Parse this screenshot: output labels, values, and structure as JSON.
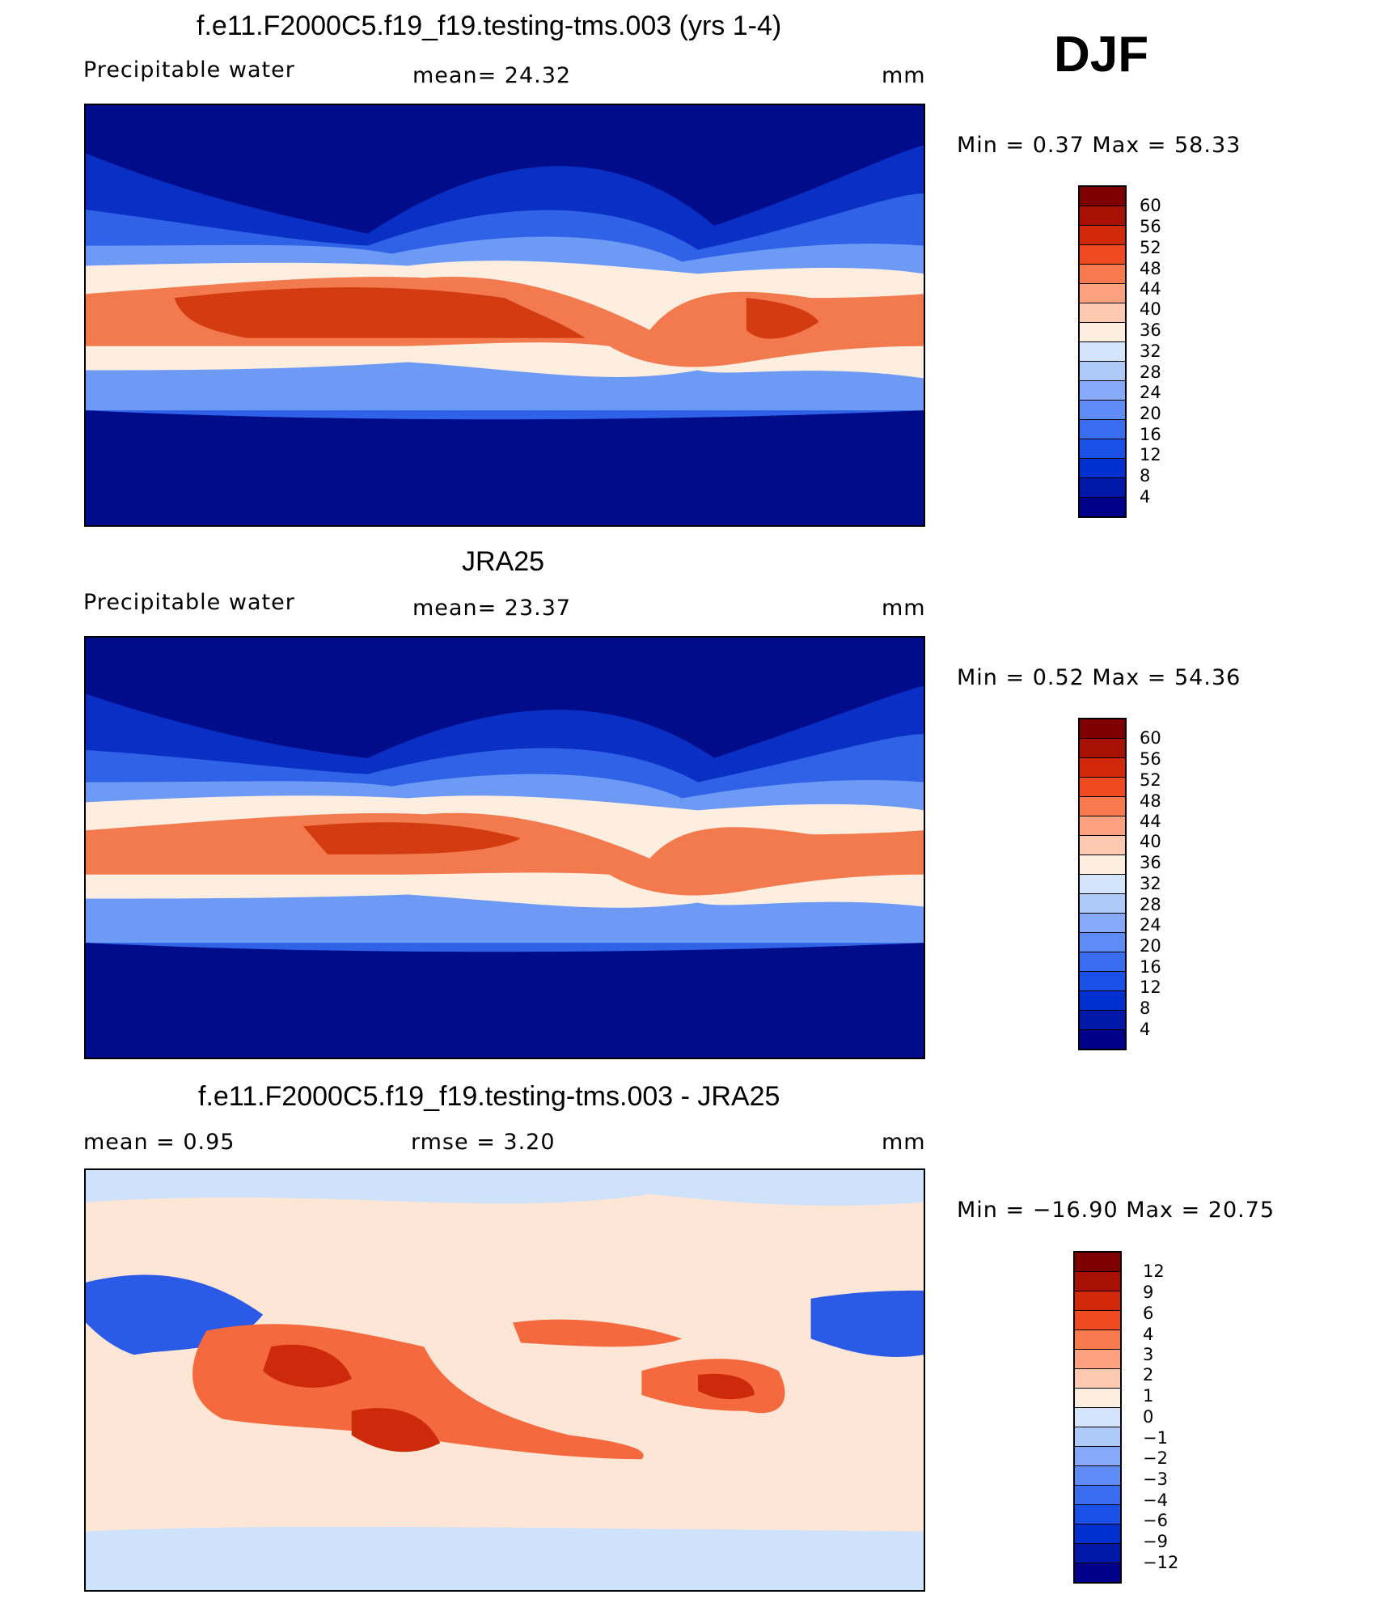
{
  "season": "DJF",
  "panels": [
    {
      "title": "f.e11.F2000C5.f19_f19.testing-tms.003 (yrs 1-4)",
      "left": "Precipitable  water",
      "center": "mean=   24.32",
      "units": "mm",
      "minmax": "Min  =     0.37  Max  =    58.33",
      "colorbar_labels": [
        "60",
        "56",
        "52",
        "48",
        "44",
        "40",
        "36",
        "32",
        "28",
        "24",
        "20",
        "16",
        "12",
        "8",
        "4"
      ]
    },
    {
      "title": "JRA25",
      "left": "Precipitable  water",
      "center": "mean=   23.37",
      "units": "mm",
      "minmax": "Min  =     0.52  Max  =    54.36",
      "colorbar_labels": [
        "60",
        "56",
        "52",
        "48",
        "44",
        "40",
        "36",
        "32",
        "28",
        "24",
        "20",
        "16",
        "12",
        "8",
        "4"
      ]
    },
    {
      "title": "f.e11.F2000C5.f19_f19.testing-tms.003 - JRA25",
      "left": "mean  =     0.95",
      "center": "rmse  =     3.20",
      "units": "mm",
      "minmax": "Min  =  −16.90  Max  =    20.75",
      "colorbar_labels": [
        "12",
        "9",
        "6",
        "4",
        "3",
        "2",
        "1",
        "0",
        "−1",
        "−2",
        "−3",
        "−4",
        "−6",
        "−9",
        "−12"
      ]
    }
  ],
  "colorbar_colors": [
    "#00008a",
    "#0018a8",
    "#0030d0",
    "#1a50e8",
    "#3a6cf0",
    "#5f8cf7",
    "#86aaf9",
    "#aecaf8",
    "#d4e4fa",
    "#fdeee0",
    "#fccab0",
    "#fca280",
    "#fa7a50",
    "#f04a20",
    "#d02808",
    "#a81004",
    "#7e0000"
  ],
  "field_colors": {
    "polar": "#000c8a",
    "midlat": "#0a2fc4",
    "subtrop": "#3f74ee",
    "transition": "#9ec0fa",
    "tropics": "#f27a4e",
    "core": "#d33c10",
    "diff_base": "#fde6d6",
    "diff_neg": "#cfe2fb",
    "diff_strong_neg": "#2a5ae6",
    "diff_pos": "#f46a3e",
    "diff_strong_pos": "#cc2a0a"
  }
}
